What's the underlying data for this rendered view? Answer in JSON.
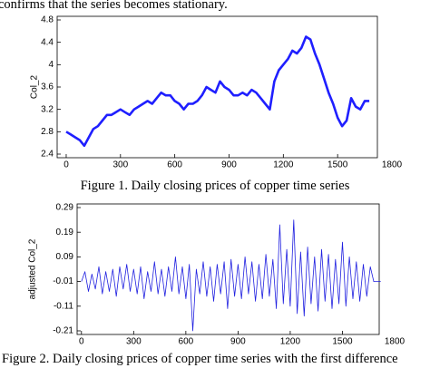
{
  "text_top": "confirms that the series becomes stationary.",
  "captions": [
    "Figure 1. Daily closing prices of copper time series",
    "Figure 2. Daily closing prices of copper time series with the first difference"
  ],
  "chart_data": [
    {
      "type": "line",
      "y_label": "Col_2",
      "color": "#1f1fff",
      "xlim": [
        -50,
        1800
      ],
      "ylim": [
        2.4,
        4.8
      ],
      "xticks": [
        0,
        300,
        600,
        900,
        1200,
        1500,
        1800
      ],
      "yticks": [
        2.4,
        2.8,
        3.2,
        3.6,
        4,
        4.4,
        4.8
      ],
      "x": [
        0,
        25,
        50,
        75,
        100,
        125,
        150,
        175,
        200,
        225,
        250,
        275,
        300,
        325,
        350,
        375,
        400,
        425,
        450,
        475,
        500,
        525,
        550,
        575,
        600,
        625,
        650,
        675,
        700,
        725,
        750,
        775,
        800,
        825,
        850,
        875,
        900,
        925,
        950,
        975,
        1000,
        1025,
        1050,
        1075,
        1100,
        1125,
        1150,
        1175,
        1200,
        1225,
        1250,
        1275,
        1300,
        1325,
        1350,
        1375,
        1400,
        1425,
        1450,
        1475,
        1500,
        1525,
        1550,
        1575,
        1600,
        1625,
        1650,
        1675
      ],
      "values": [
        2.8,
        2.75,
        2.7,
        2.65,
        2.55,
        2.7,
        2.85,
        2.9,
        3.0,
        3.1,
        3.1,
        3.15,
        3.2,
        3.15,
        3.1,
        3.2,
        3.25,
        3.3,
        3.35,
        3.3,
        3.4,
        3.5,
        3.45,
        3.45,
        3.35,
        3.3,
        3.2,
        3.3,
        3.3,
        3.35,
        3.45,
        3.6,
        3.55,
        3.5,
        3.7,
        3.6,
        3.55,
        3.45,
        3.45,
        3.5,
        3.45,
        3.55,
        3.5,
        3.4,
        3.3,
        3.2,
        3.7,
        3.9,
        4.0,
        4.1,
        4.25,
        4.2,
        4.3,
        4.5,
        4.45,
        4.2,
        4.0,
        3.75,
        3.5,
        3.3,
        3.05,
        2.9,
        3.0,
        3.4,
        3.25,
        3.2,
        3.35,
        3.35
      ]
    },
    {
      "type": "line",
      "y_label": "adjusted Col_2",
      "color": "#2020e0",
      "xlim": [
        -25,
        1800
      ],
      "ylim": [
        -0.21,
        0.29
      ],
      "xticks": [
        0,
        300,
        600,
        900,
        1200,
        1500,
        1800
      ],
      "yticks": [
        -0.21,
        -0.11,
        -0.01,
        0.09,
        0.19,
        0.29
      ],
      "x": [
        0,
        20,
        40,
        60,
        80,
        100,
        120,
        140,
        160,
        180,
        200,
        220,
        240,
        260,
        280,
        300,
        320,
        340,
        360,
        380,
        400,
        420,
        440,
        460,
        480,
        500,
        520,
        540,
        560,
        580,
        600,
        620,
        640,
        660,
        680,
        700,
        720,
        740,
        760,
        780,
        800,
        820,
        840,
        860,
        880,
        900,
        920,
        940,
        960,
        980,
        1000,
        1020,
        1040,
        1060,
        1080,
        1100,
        1120,
        1140,
        1160,
        1180,
        1200,
        1220,
        1240,
        1260,
        1280,
        1300,
        1320,
        1340,
        1360,
        1380,
        1400,
        1420,
        1440,
        1460,
        1480,
        1500,
        1520,
        1540,
        1560,
        1580,
        1600,
        1620,
        1640,
        1660,
        1680,
        1720
      ],
      "values": [
        -0.01,
        0.03,
        -0.05,
        0.02,
        -0.04,
        0.05,
        -0.06,
        0.03,
        -0.05,
        0.04,
        -0.07,
        0.05,
        -0.04,
        0.06,
        -0.05,
        0.04,
        -0.06,
        0.05,
        -0.08,
        0.03,
        -0.05,
        0.07,
        -0.06,
        0.04,
        -0.07,
        0.05,
        -0.05,
        0.09,
        -0.06,
        0.05,
        -0.08,
        0.06,
        -0.21,
        0.04,
        -0.06,
        0.07,
        -0.07,
        0.05,
        -0.09,
        0.06,
        -0.06,
        0.07,
        -0.12,
        0.08,
        -0.07,
        0.06,
        -0.08,
        0.09,
        -0.06,
        0.07,
        -0.09,
        0.06,
        -0.08,
        0.1,
        -0.07,
        0.08,
        -0.12,
        0.22,
        -0.1,
        0.12,
        -0.11,
        0.24,
        -0.14,
        0.11,
        -0.15,
        0.13,
        -0.1,
        0.09,
        -0.13,
        0.12,
        -0.09,
        0.1,
        -0.12,
        0.08,
        -0.1,
        0.15,
        -0.11,
        0.09,
        -0.08,
        0.07,
        -0.09,
        0.06,
        -0.07,
        0.05,
        -0.01,
        -0.01
      ]
    }
  ]
}
